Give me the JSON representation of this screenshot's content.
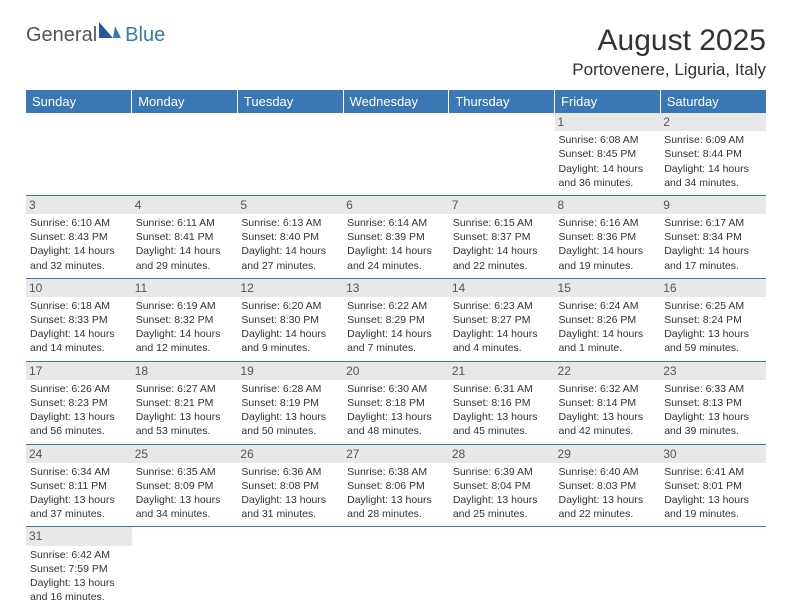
{
  "logo": {
    "part1": "General",
    "part2": "Blue"
  },
  "title": "August 2025",
  "location": "Portovenere, Liguria, Italy",
  "colors": {
    "header_bg": "#3a78b5",
    "header_text": "#ffffff",
    "daynum_bg": "#e8e8e8",
    "daynum_text": "#555555",
    "body_text": "#333333",
    "rule": "#3a78b5"
  },
  "day_headers": [
    "Sunday",
    "Monday",
    "Tuesday",
    "Wednesday",
    "Thursday",
    "Friday",
    "Saturday"
  ],
  "weeks": [
    [
      null,
      null,
      null,
      null,
      null,
      {
        "num": "1",
        "sunrise": "Sunrise: 6:08 AM",
        "sunset": "Sunset: 8:45 PM",
        "daylight1": "Daylight: 14 hours",
        "daylight2": "and 36 minutes."
      },
      {
        "num": "2",
        "sunrise": "Sunrise: 6:09 AM",
        "sunset": "Sunset: 8:44 PM",
        "daylight1": "Daylight: 14 hours",
        "daylight2": "and 34 minutes."
      }
    ],
    [
      {
        "num": "3",
        "sunrise": "Sunrise: 6:10 AM",
        "sunset": "Sunset: 8:43 PM",
        "daylight1": "Daylight: 14 hours",
        "daylight2": "and 32 minutes."
      },
      {
        "num": "4",
        "sunrise": "Sunrise: 6:11 AM",
        "sunset": "Sunset: 8:41 PM",
        "daylight1": "Daylight: 14 hours",
        "daylight2": "and 29 minutes."
      },
      {
        "num": "5",
        "sunrise": "Sunrise: 6:13 AM",
        "sunset": "Sunset: 8:40 PM",
        "daylight1": "Daylight: 14 hours",
        "daylight2": "and 27 minutes."
      },
      {
        "num": "6",
        "sunrise": "Sunrise: 6:14 AM",
        "sunset": "Sunset: 8:39 PM",
        "daylight1": "Daylight: 14 hours",
        "daylight2": "and 24 minutes."
      },
      {
        "num": "7",
        "sunrise": "Sunrise: 6:15 AM",
        "sunset": "Sunset: 8:37 PM",
        "daylight1": "Daylight: 14 hours",
        "daylight2": "and 22 minutes."
      },
      {
        "num": "8",
        "sunrise": "Sunrise: 6:16 AM",
        "sunset": "Sunset: 8:36 PM",
        "daylight1": "Daylight: 14 hours",
        "daylight2": "and 19 minutes."
      },
      {
        "num": "9",
        "sunrise": "Sunrise: 6:17 AM",
        "sunset": "Sunset: 8:34 PM",
        "daylight1": "Daylight: 14 hours",
        "daylight2": "and 17 minutes."
      }
    ],
    [
      {
        "num": "10",
        "sunrise": "Sunrise: 6:18 AM",
        "sunset": "Sunset: 8:33 PM",
        "daylight1": "Daylight: 14 hours",
        "daylight2": "and 14 minutes."
      },
      {
        "num": "11",
        "sunrise": "Sunrise: 6:19 AM",
        "sunset": "Sunset: 8:32 PM",
        "daylight1": "Daylight: 14 hours",
        "daylight2": "and 12 minutes."
      },
      {
        "num": "12",
        "sunrise": "Sunrise: 6:20 AM",
        "sunset": "Sunset: 8:30 PM",
        "daylight1": "Daylight: 14 hours",
        "daylight2": "and 9 minutes."
      },
      {
        "num": "13",
        "sunrise": "Sunrise: 6:22 AM",
        "sunset": "Sunset: 8:29 PM",
        "daylight1": "Daylight: 14 hours",
        "daylight2": "and 7 minutes."
      },
      {
        "num": "14",
        "sunrise": "Sunrise: 6:23 AM",
        "sunset": "Sunset: 8:27 PM",
        "daylight1": "Daylight: 14 hours",
        "daylight2": "and 4 minutes."
      },
      {
        "num": "15",
        "sunrise": "Sunrise: 6:24 AM",
        "sunset": "Sunset: 8:26 PM",
        "daylight1": "Daylight: 14 hours",
        "daylight2": "and 1 minute."
      },
      {
        "num": "16",
        "sunrise": "Sunrise: 6:25 AM",
        "sunset": "Sunset: 8:24 PM",
        "daylight1": "Daylight: 13 hours",
        "daylight2": "and 59 minutes."
      }
    ],
    [
      {
        "num": "17",
        "sunrise": "Sunrise: 6:26 AM",
        "sunset": "Sunset: 8:23 PM",
        "daylight1": "Daylight: 13 hours",
        "daylight2": "and 56 minutes."
      },
      {
        "num": "18",
        "sunrise": "Sunrise: 6:27 AM",
        "sunset": "Sunset: 8:21 PM",
        "daylight1": "Daylight: 13 hours",
        "daylight2": "and 53 minutes."
      },
      {
        "num": "19",
        "sunrise": "Sunrise: 6:28 AM",
        "sunset": "Sunset: 8:19 PM",
        "daylight1": "Daylight: 13 hours",
        "daylight2": "and 50 minutes."
      },
      {
        "num": "20",
        "sunrise": "Sunrise: 6:30 AM",
        "sunset": "Sunset: 8:18 PM",
        "daylight1": "Daylight: 13 hours",
        "daylight2": "and 48 minutes."
      },
      {
        "num": "21",
        "sunrise": "Sunrise: 6:31 AM",
        "sunset": "Sunset: 8:16 PM",
        "daylight1": "Daylight: 13 hours",
        "daylight2": "and 45 minutes."
      },
      {
        "num": "22",
        "sunrise": "Sunrise: 6:32 AM",
        "sunset": "Sunset: 8:14 PM",
        "daylight1": "Daylight: 13 hours",
        "daylight2": "and 42 minutes."
      },
      {
        "num": "23",
        "sunrise": "Sunrise: 6:33 AM",
        "sunset": "Sunset: 8:13 PM",
        "daylight1": "Daylight: 13 hours",
        "daylight2": "and 39 minutes."
      }
    ],
    [
      {
        "num": "24",
        "sunrise": "Sunrise: 6:34 AM",
        "sunset": "Sunset: 8:11 PM",
        "daylight1": "Daylight: 13 hours",
        "daylight2": "and 37 minutes."
      },
      {
        "num": "25",
        "sunrise": "Sunrise: 6:35 AM",
        "sunset": "Sunset: 8:09 PM",
        "daylight1": "Daylight: 13 hours",
        "daylight2": "and 34 minutes."
      },
      {
        "num": "26",
        "sunrise": "Sunrise: 6:36 AM",
        "sunset": "Sunset: 8:08 PM",
        "daylight1": "Daylight: 13 hours",
        "daylight2": "and 31 minutes."
      },
      {
        "num": "27",
        "sunrise": "Sunrise: 6:38 AM",
        "sunset": "Sunset: 8:06 PM",
        "daylight1": "Daylight: 13 hours",
        "daylight2": "and 28 minutes."
      },
      {
        "num": "28",
        "sunrise": "Sunrise: 6:39 AM",
        "sunset": "Sunset: 8:04 PM",
        "daylight1": "Daylight: 13 hours",
        "daylight2": "and 25 minutes."
      },
      {
        "num": "29",
        "sunrise": "Sunrise: 6:40 AM",
        "sunset": "Sunset: 8:03 PM",
        "daylight1": "Daylight: 13 hours",
        "daylight2": "and 22 minutes."
      },
      {
        "num": "30",
        "sunrise": "Sunrise: 6:41 AM",
        "sunset": "Sunset: 8:01 PM",
        "daylight1": "Daylight: 13 hours",
        "daylight2": "and 19 minutes."
      }
    ],
    [
      {
        "num": "31",
        "sunrise": "Sunrise: 6:42 AM",
        "sunset": "Sunset: 7:59 PM",
        "daylight1": "Daylight: 13 hours",
        "daylight2": "and 16 minutes."
      },
      null,
      null,
      null,
      null,
      null,
      null
    ]
  ]
}
